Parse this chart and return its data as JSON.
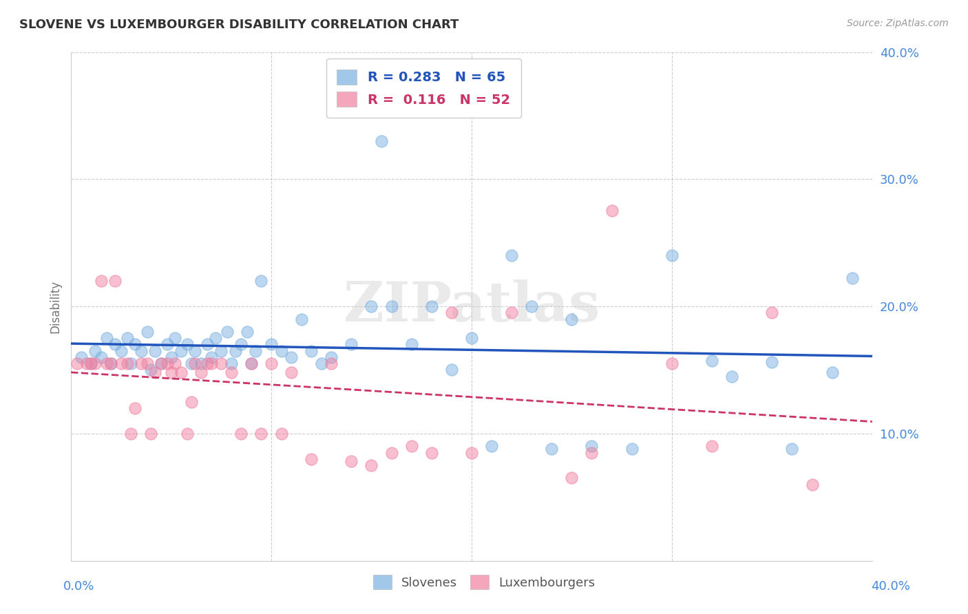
{
  "title": "SLOVENE VS LUXEMBOURGER DISABILITY CORRELATION CHART",
  "source": "Source: ZipAtlas.com",
  "ylabel": "Disability",
  "xlim": [
    0.0,
    0.4
  ],
  "ylim": [
    0.0,
    0.4
  ],
  "xtick_vals": [
    0.0,
    0.1,
    0.2,
    0.3,
    0.4
  ],
  "ytick_vals": [
    0.1,
    0.2,
    0.3,
    0.4
  ],
  "legend_R_blue": "0.283",
  "legend_N_blue": "65",
  "legend_R_pink": "0.116",
  "legend_N_pink": "52",
  "blue_color": "#7ab0e0",
  "pink_color": "#f080a0",
  "blue_line_color": "#2255bb",
  "pink_line_color": "#cc3366",
  "tick_color": "#4488dd",
  "background_color": "#ffffff",
  "watermark": "ZIPatlas",
  "slovene_x": [
    0.005,
    0.01,
    0.012,
    0.015,
    0.018,
    0.02,
    0.022,
    0.025,
    0.028,
    0.03,
    0.032,
    0.035,
    0.038,
    0.04,
    0.042,
    0.045,
    0.048,
    0.05,
    0.052,
    0.055,
    0.058,
    0.06,
    0.062,
    0.065,
    0.068,
    0.07,
    0.072,
    0.075,
    0.078,
    0.08,
    0.082,
    0.085,
    0.088,
    0.09,
    0.092,
    0.095,
    0.1,
    0.105,
    0.11,
    0.115,
    0.12,
    0.125,
    0.13,
    0.14,
    0.15,
    0.155,
    0.16,
    0.17,
    0.18,
    0.19,
    0.2,
    0.21,
    0.22,
    0.23,
    0.24,
    0.25,
    0.26,
    0.28,
    0.3,
    0.32,
    0.33,
    0.35,
    0.36,
    0.38,
    0.39
  ],
  "slovene_y": [
    0.16,
    0.155,
    0.165,
    0.16,
    0.175,
    0.155,
    0.17,
    0.165,
    0.175,
    0.155,
    0.17,
    0.165,
    0.18,
    0.15,
    0.165,
    0.155,
    0.17,
    0.16,
    0.175,
    0.165,
    0.17,
    0.155,
    0.165,
    0.155,
    0.17,
    0.16,
    0.175,
    0.165,
    0.18,
    0.155,
    0.165,
    0.17,
    0.18,
    0.155,
    0.165,
    0.22,
    0.17,
    0.165,
    0.16,
    0.19,
    0.165,
    0.155,
    0.16,
    0.17,
    0.2,
    0.33,
    0.2,
    0.17,
    0.2,
    0.15,
    0.175,
    0.09,
    0.24,
    0.2,
    0.088,
    0.19,
    0.09,
    0.088,
    0.24,
    0.157,
    0.145,
    0.156,
    0.088,
    0.148,
    0.222
  ],
  "luxembourger_x": [
    0.003,
    0.008,
    0.01,
    0.012,
    0.015,
    0.018,
    0.02,
    0.022,
    0.025,
    0.028,
    0.03,
    0.032,
    0.035,
    0.038,
    0.04,
    0.042,
    0.045,
    0.048,
    0.05,
    0.052,
    0.055,
    0.058,
    0.06,
    0.062,
    0.065,
    0.068,
    0.07,
    0.075,
    0.08,
    0.085,
    0.09,
    0.095,
    0.1,
    0.105,
    0.11,
    0.12,
    0.13,
    0.14,
    0.15,
    0.16,
    0.17,
    0.18,
    0.19,
    0.2,
    0.22,
    0.25,
    0.26,
    0.27,
    0.3,
    0.32,
    0.35,
    0.37
  ],
  "luxembourger_y": [
    0.155,
    0.155,
    0.155,
    0.155,
    0.22,
    0.155,
    0.155,
    0.22,
    0.155,
    0.155,
    0.1,
    0.12,
    0.155,
    0.155,
    0.1,
    0.148,
    0.155,
    0.155,
    0.148,
    0.155,
    0.148,
    0.1,
    0.125,
    0.155,
    0.148,
    0.155,
    0.155,
    0.155,
    0.148,
    0.1,
    0.155,
    0.1,
    0.155,
    0.1,
    0.148,
    0.08,
    0.155,
    0.078,
    0.075,
    0.085,
    0.09,
    0.085,
    0.195,
    0.085,
    0.195,
    0.065,
    0.085,
    0.275,
    0.155,
    0.09,
    0.195,
    0.06
  ]
}
